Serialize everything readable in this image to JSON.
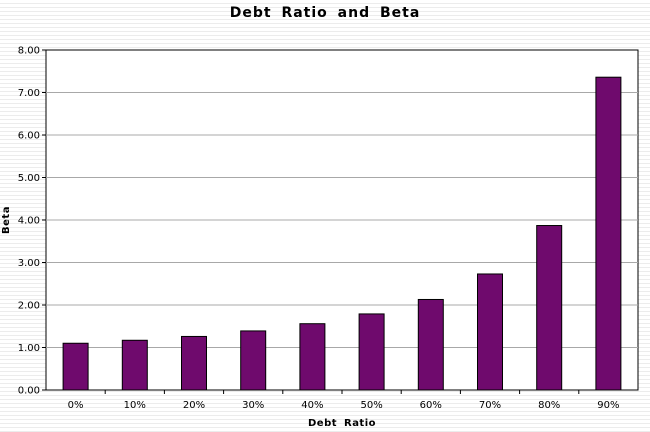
{
  "chart_data": {
    "type": "bar",
    "title": "Debt  Ratio  and  Beta",
    "xlabel": "Debt  Ratio",
    "ylabel": "Beta",
    "categories": [
      "0%",
      "10%",
      "20%",
      "30%",
      "40%",
      "50%",
      "60%",
      "70%",
      "80%",
      "90%"
    ],
    "values": [
      1.1,
      1.17,
      1.26,
      1.39,
      1.56,
      1.79,
      2.13,
      2.73,
      3.87,
      7.36
    ],
    "ylim": [
      0,
      8
    ],
    "yticks": [
      "0.00",
      "1.00",
      "2.00",
      "3.00",
      "4.00",
      "5.00",
      "6.00",
      "7.00",
      "8.00"
    ],
    "grid": true,
    "legend": "none",
    "bar_color": "#6f0a6d"
  }
}
